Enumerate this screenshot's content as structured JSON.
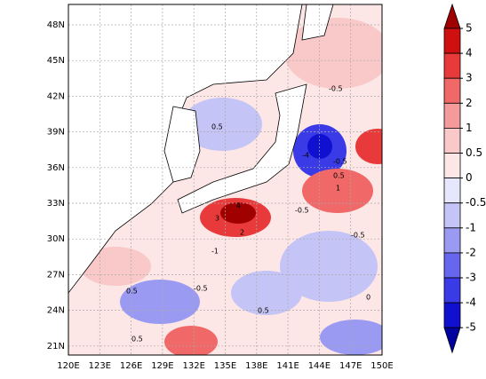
{
  "map": {
    "lat_labels": [
      "48N",
      "45N",
      "42N",
      "39N",
      "36N",
      "33N",
      "30N",
      "27N",
      "24N",
      "21N"
    ],
    "lon_labels": [
      "120E",
      "123E",
      "126E",
      "129E",
      "132E",
      "135E",
      "138E",
      "141E",
      "144E",
      "147E",
      "150E"
    ]
  },
  "colorbar": {
    "ticks": [
      5,
      4,
      3,
      2,
      1,
      0.5,
      0,
      -0.5,
      -1,
      -2,
      -3,
      -4,
      -5
    ],
    "colors": [
      "#a00000",
      "#d01010",
      "#e83a3a",
      "#f06868",
      "#f49a9a",
      "#f9c8c8",
      "#fde6e6",
      "#e6e6fd",
      "#c4c4f7",
      "#9a9af2",
      "#6666ee",
      "#3a3ae6",
      "#1010d0",
      "#0000a0"
    ]
  },
  "contour_labels": [
    "0.5",
    "-0.5",
    "4",
    "3",
    "2",
    "1",
    "-0.5",
    "0.5",
    "-0.5",
    "-1",
    "0.5",
    "-0.5",
    "0.5",
    "-4",
    "-0.5",
    "0.5",
    "0"
  ]
}
